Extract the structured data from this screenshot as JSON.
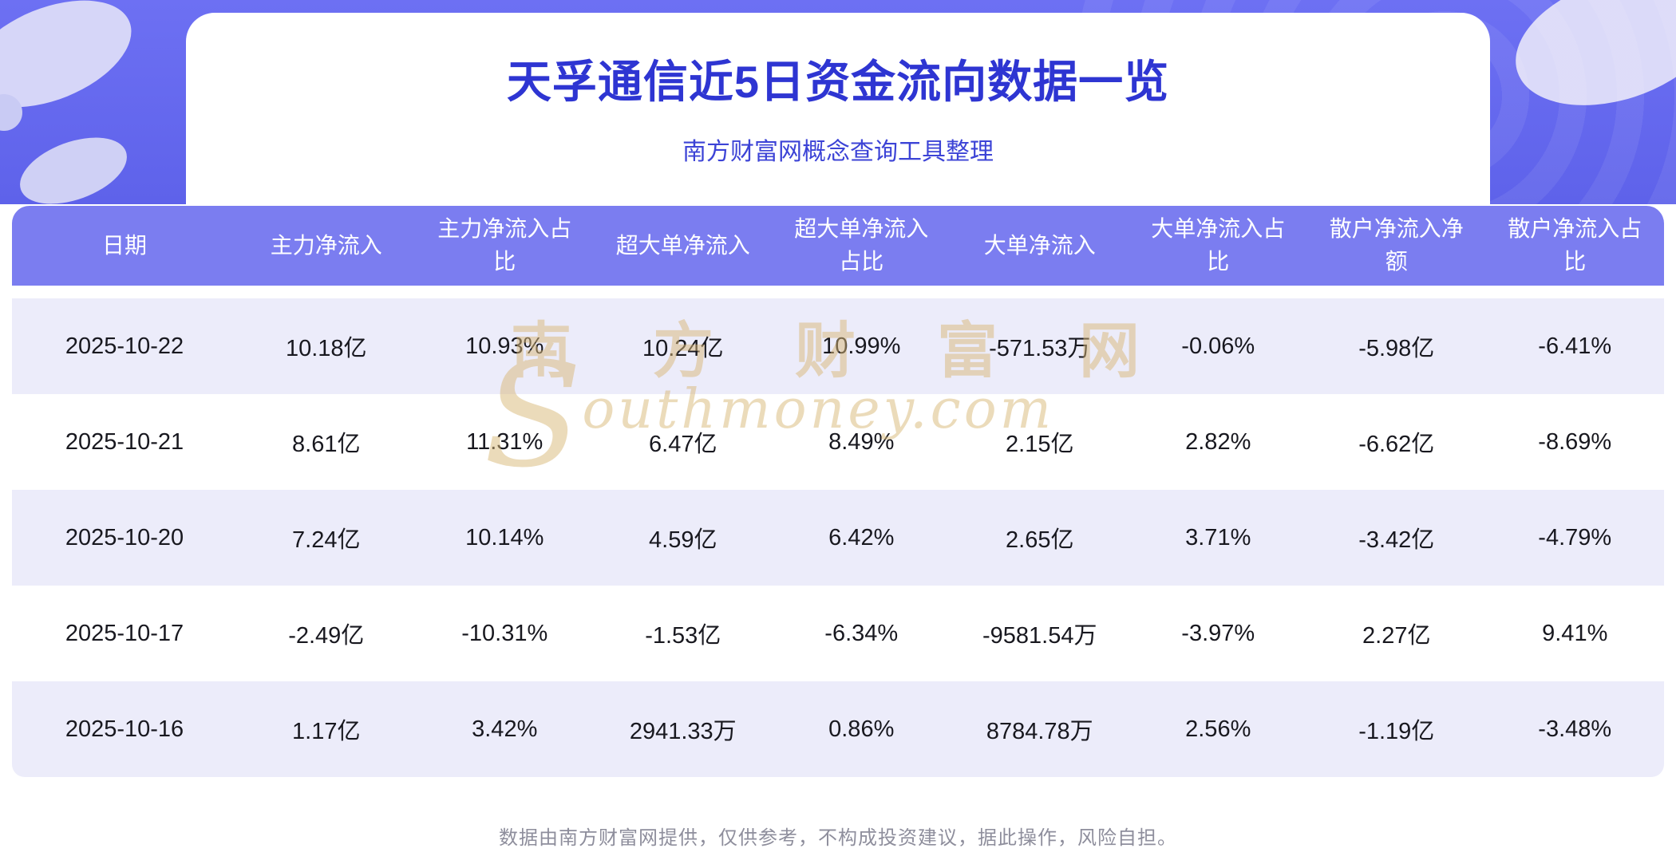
{
  "page": {
    "title": "天孚通信近5日资金流向数据一览",
    "subtitle": "南方财富网概念查询工具整理",
    "footer": "数据由南方财富网提供，仅供参考，不构成投资建议，据此操作，风险自担。"
  },
  "watermark": {
    "cn": "南方财富网",
    "initial": "S",
    "en": "outhmoney.com"
  },
  "chart_data": {
    "type": "table",
    "title": "天孚通信近5日资金流向数据一览",
    "columns": [
      "日期",
      "主力净流入",
      "主力净流入占比",
      "超大单净流入",
      "超大单净流入占比",
      "大单净流入",
      "大单净流入占比",
      "散户净流入净额",
      "散户净流入占比"
    ],
    "rows": [
      [
        "2025-10-22",
        "10.18亿",
        "10.93%",
        "10.24亿",
        "10.99%",
        "-571.53万",
        "-0.06%",
        "-5.98亿",
        "-6.41%"
      ],
      [
        "2025-10-21",
        "8.61亿",
        "11.31%",
        "6.47亿",
        "8.49%",
        "2.15亿",
        "2.82%",
        "-6.62亿",
        "-8.69%"
      ],
      [
        "2025-10-20",
        "7.24亿",
        "10.14%",
        "4.59亿",
        "6.42%",
        "2.65亿",
        "3.71%",
        "-3.42亿",
        "-4.79%"
      ],
      [
        "2025-10-17",
        "-2.49亿",
        "-10.31%",
        "-1.53亿",
        "-6.34%",
        "-9581.54万",
        "-3.97%",
        "2.27亿",
        "9.41%"
      ],
      [
        "2025-10-16",
        "1.17亿",
        "3.42%",
        "2941.33万",
        "0.86%",
        "8784.78万",
        "2.56%",
        "-1.19亿",
        "-3.48%"
      ]
    ]
  },
  "colors": {
    "bg1": "#6d70f3",
    "bg2": "#5e62ea",
    "header": "#7b7df0",
    "stripe": "#ececfa",
    "title": "#2e35d2",
    "subtitle": "#3c43d6",
    "wm": "#d9b878",
    "footer": "#8e8e9c"
  }
}
